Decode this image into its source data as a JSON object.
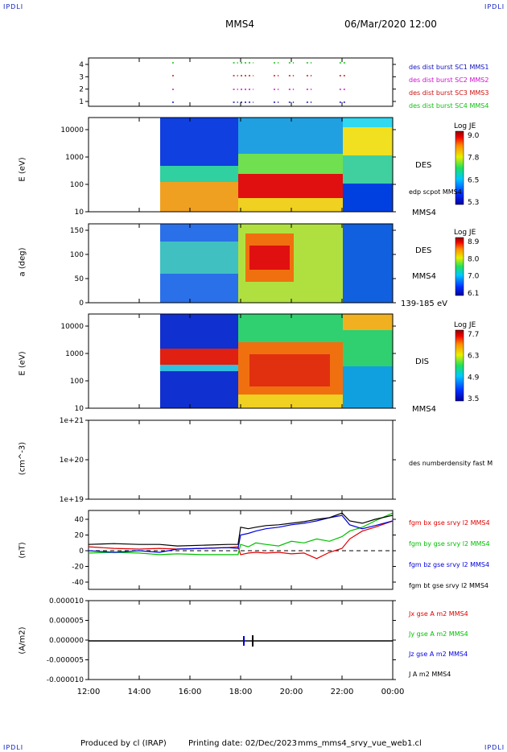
{
  "header": {
    "corner_tl": "IPDLI",
    "corner_tr": "IPDLI",
    "corner_bl": "IPDLI",
    "corner_br": "IPDLI",
    "spacecraft": "MMS4",
    "datetime": "06/Mar/2020 12:00"
  },
  "footer": {
    "producer": "Produced by cl (IRAP)",
    "printing": "Printing date: 02/Dec/2023",
    "script": "mms_mms4_srvy_vue_web1.cl"
  },
  "time_axis": {
    "ticks": [
      "12:00",
      "14:00",
      "16:00",
      "18:00",
      "20:00",
      "22:00",
      "00:00"
    ]
  },
  "chart_data": [
    {
      "type": "scatter",
      "panel": "burst-availability",
      "yticks": [
        "1",
        "2",
        "3",
        "4"
      ],
      "legend": [
        {
          "name": "des dist burst SC1 MMS1",
          "color": "#1010c0"
        },
        {
          "name": "des dist burst SC2 MMS2",
          "color": "#d010d0"
        },
        {
          "name": "des dist burst SC3 MMS3",
          "color": "#d01010"
        },
        {
          "name": "des dist burst SC4 MMS4",
          "color": "#10c010"
        }
      ],
      "intervals_hours": [
        [
          15.3,
          15.4
        ],
        [
          17.7,
          17.9
        ],
        [
          18.0,
          18.5
        ],
        [
          19.3,
          19.5
        ],
        [
          19.9,
          20.1
        ],
        [
          20.6,
          20.8
        ],
        [
          21.9,
          22.2
        ]
      ]
    },
    {
      "type": "heatmap",
      "panel": "des-energy",
      "ylabel": "E (eV)",
      "yticks": [
        "10000",
        "1000",
        "100",
        "10"
      ],
      "right_label": "DES",
      "extra_label": "edp scpot MMS4",
      "bottom_label": "MMS4",
      "colorbar": {
        "title": "Log JE",
        "ticks": [
          "9.0",
          "7.8",
          "6.5",
          "5.3"
        ]
      }
    },
    {
      "type": "heatmap",
      "panel": "des-pitch",
      "ylabel": "a (deg)",
      "yticks": [
        "150",
        "100",
        "50",
        "0"
      ],
      "right_label": "DES",
      "mid_label": "MMS4",
      "bottom_label": "139-185 eV",
      "colorbar": {
        "title": "Log JE",
        "ticks": [
          "8.9",
          "8.0",
          "7.0",
          "6.1"
        ]
      }
    },
    {
      "type": "heatmap",
      "panel": "dis-energy",
      "ylabel": "E (eV)",
      "yticks": [
        "10000",
        "1000",
        "100",
        "10"
      ],
      "right_label": "DIS",
      "bottom_label": "MMS4",
      "colorbar": {
        "title": "Log JE",
        "ticks": [
          "7.7",
          "6.3",
          "4.9",
          "3.5"
        ]
      }
    },
    {
      "type": "line",
      "panel": "density",
      "ylabel": "(cm^-3)",
      "yticks": [
        "1e+21",
        "1e+20",
        "1e+19"
      ],
      "legend": [
        {
          "name": "des numberdensity fast M",
          "color": "#000000"
        }
      ]
    },
    {
      "type": "line",
      "panel": "magnetic-field",
      "ylabel": "(nT)",
      "yticks": [
        "40",
        "20",
        "0",
        "-20",
        "-40"
      ],
      "ylim": [
        -50,
        50
      ],
      "legend": [
        {
          "name": "fgm bx gse srvy l2 MMS4",
          "color": "#e00000"
        },
        {
          "name": "fgm by gse srvy l2 MMS4",
          "color": "#00c000"
        },
        {
          "name": "fgm bz gse srvy l2 MMS4",
          "color": "#0000e0"
        },
        {
          "name": "fgm bt gse srvy l2 MMS4",
          "color": "#000000"
        }
      ],
      "x_hours": [
        12,
        13,
        14,
        14.8,
        15.5,
        16.5,
        17.5,
        17.9,
        18.0,
        18.3,
        18.6,
        19.0,
        19.5,
        20.0,
        20.5,
        21.0,
        21.5,
        22.0,
        22.3,
        22.8,
        23.3,
        24.0
      ],
      "series": [
        {
          "name": "bx",
          "values": [
            5,
            3,
            2,
            3,
            2,
            3,
            4,
            5,
            -5,
            -3,
            -2,
            -3,
            -2,
            -4,
            -3,
            -10,
            -2,
            3,
            15,
            25,
            30,
            38
          ]
        },
        {
          "name": "by",
          "values": [
            -3,
            -2,
            -3,
            -5,
            -4,
            -5,
            -5,
            -5,
            8,
            5,
            10,
            8,
            6,
            12,
            10,
            15,
            12,
            18,
            25,
            30,
            38,
            48
          ]
        },
        {
          "name": "bz",
          "values": [
            0,
            -2,
            0,
            -2,
            2,
            3,
            4,
            3,
            20,
            22,
            25,
            28,
            30,
            33,
            35,
            38,
            42,
            45,
            33,
            28,
            32,
            38
          ]
        },
        {
          "name": "bt",
          "values": [
            8,
            9,
            8,
            8,
            6,
            7,
            8,
            8,
            30,
            28,
            30,
            32,
            33,
            35,
            37,
            40,
            42,
            48,
            38,
            35,
            40,
            45
          ]
        }
      ]
    },
    {
      "type": "line",
      "panel": "current-density",
      "ylabel": "(A/m2)",
      "yticks": [
        "0.000010",
        "0.000005",
        "0.000000",
        "-0.000005",
        "-0.000010"
      ],
      "ylim": [
        -1e-05,
        1e-05
      ],
      "legend": [
        {
          "name": "Jx gse A m2 MMS4",
          "color": "#e00000"
        },
        {
          "name": "Jy gse A m2 MMS4",
          "color": "#00c000"
        },
        {
          "name": "Jz gse A m2 MMS4",
          "color": "#0000e0"
        },
        {
          "name": "J A m2 MMS4",
          "color": "#000000"
        }
      ]
    }
  ]
}
